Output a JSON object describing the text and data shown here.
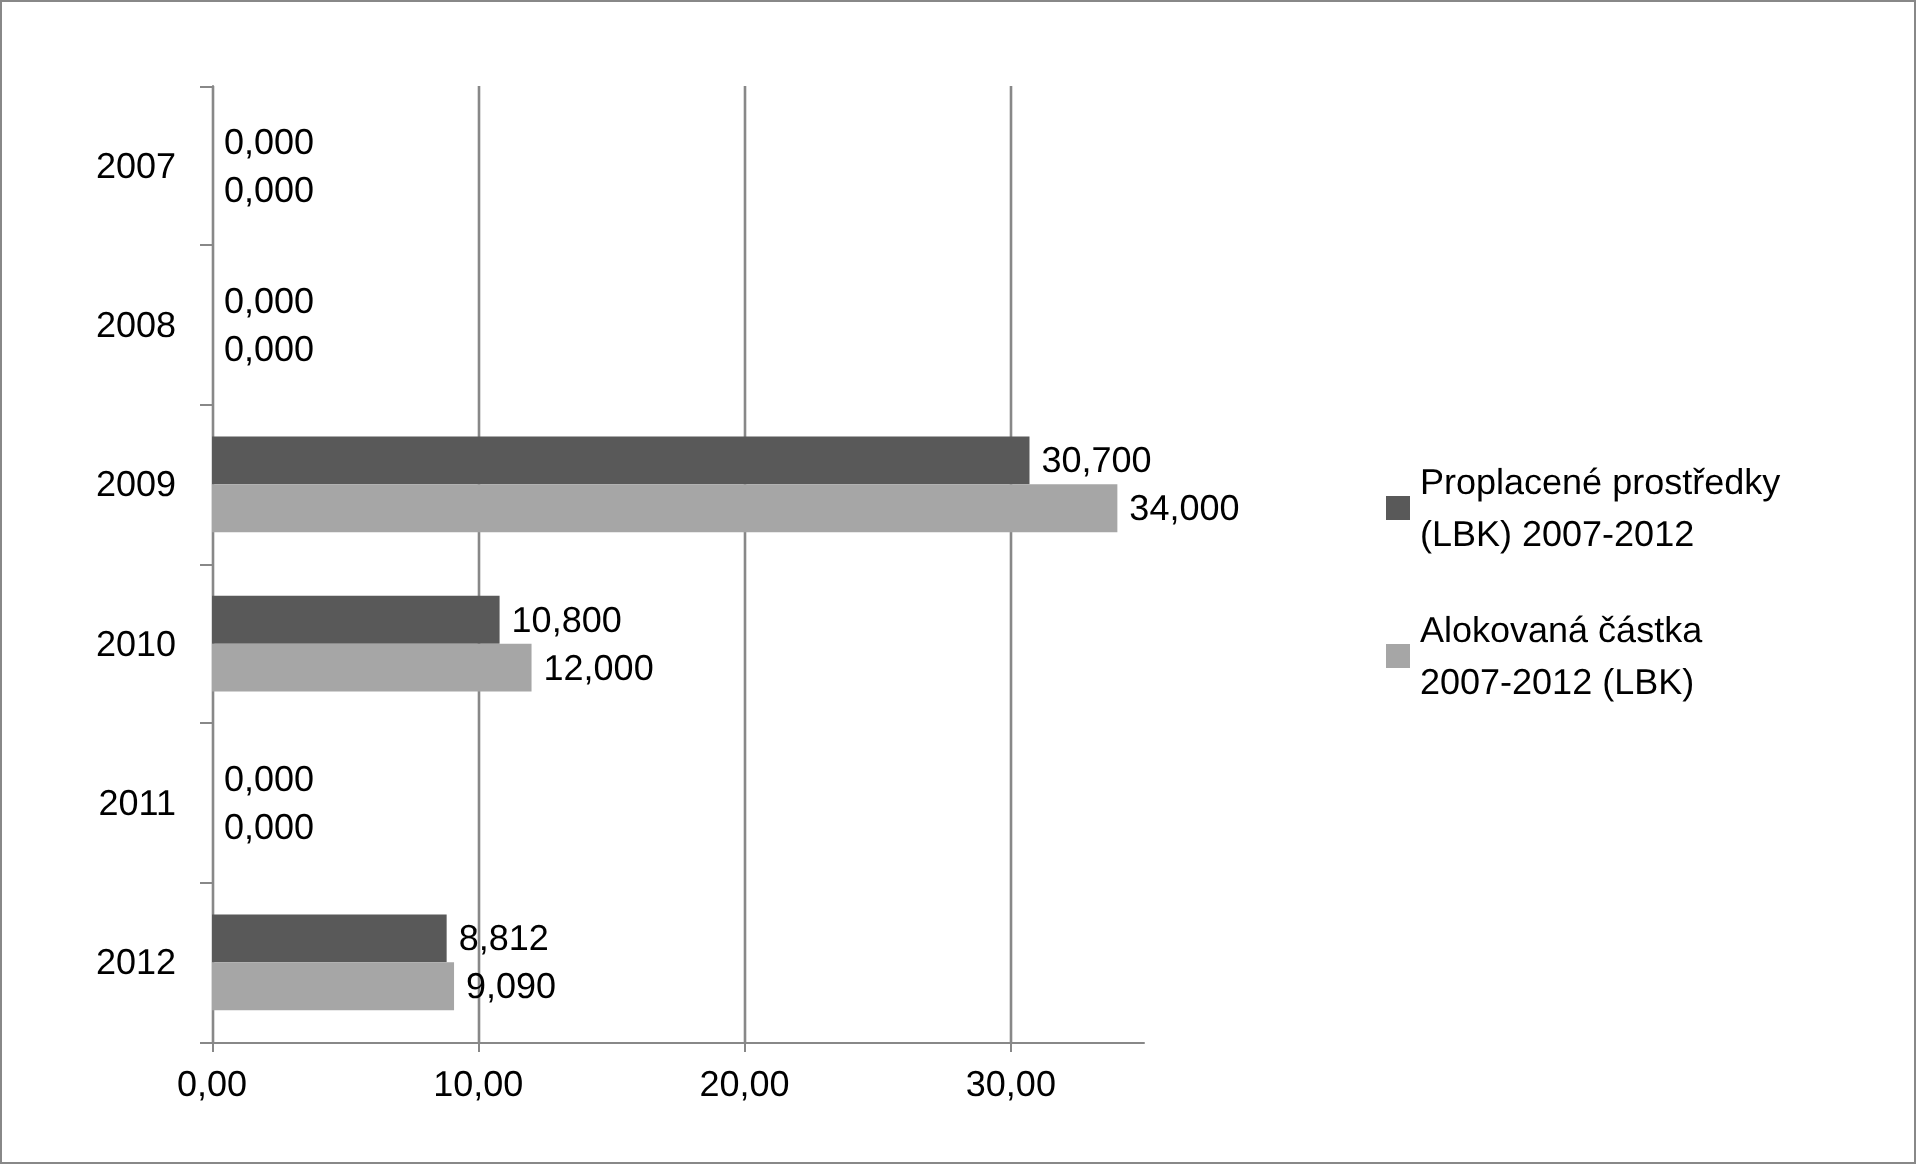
{
  "chart_data": {
    "type": "bar",
    "orientation": "horizontal",
    "categories": [
      "2007",
      "2008",
      "2009",
      "2010",
      "2011",
      "2012"
    ],
    "series": [
      {
        "name": "Proplacené prostředky (LBK) 2007-2012",
        "color": "#595959",
        "values": [
          0,
          0,
          30.7,
          10.8,
          0,
          8.812
        ],
        "value_labels": [
          "0,000",
          "0,000",
          "30,700",
          "10,800",
          "0,000",
          "8,812"
        ]
      },
      {
        "name": "Alokovaná částka 2007-2012 (LBK)",
        "color": "#a6a6a6",
        "values": [
          0,
          0,
          34,
          12,
          0,
          9.09
        ],
        "value_labels": [
          "0,000",
          "0,000",
          "34,000",
          "12,000",
          "0,000",
          "9,090"
        ]
      }
    ],
    "xlim": [
      0,
      35
    ],
    "xticks": [
      {
        "value": 0,
        "label": "0,00"
      },
      {
        "value": 10,
        "label": "10,00"
      },
      {
        "value": 20,
        "label": "20,00"
      },
      {
        "value": 30,
        "label": "30,00"
      }
    ],
    "grid": "x",
    "legend": "right"
  }
}
